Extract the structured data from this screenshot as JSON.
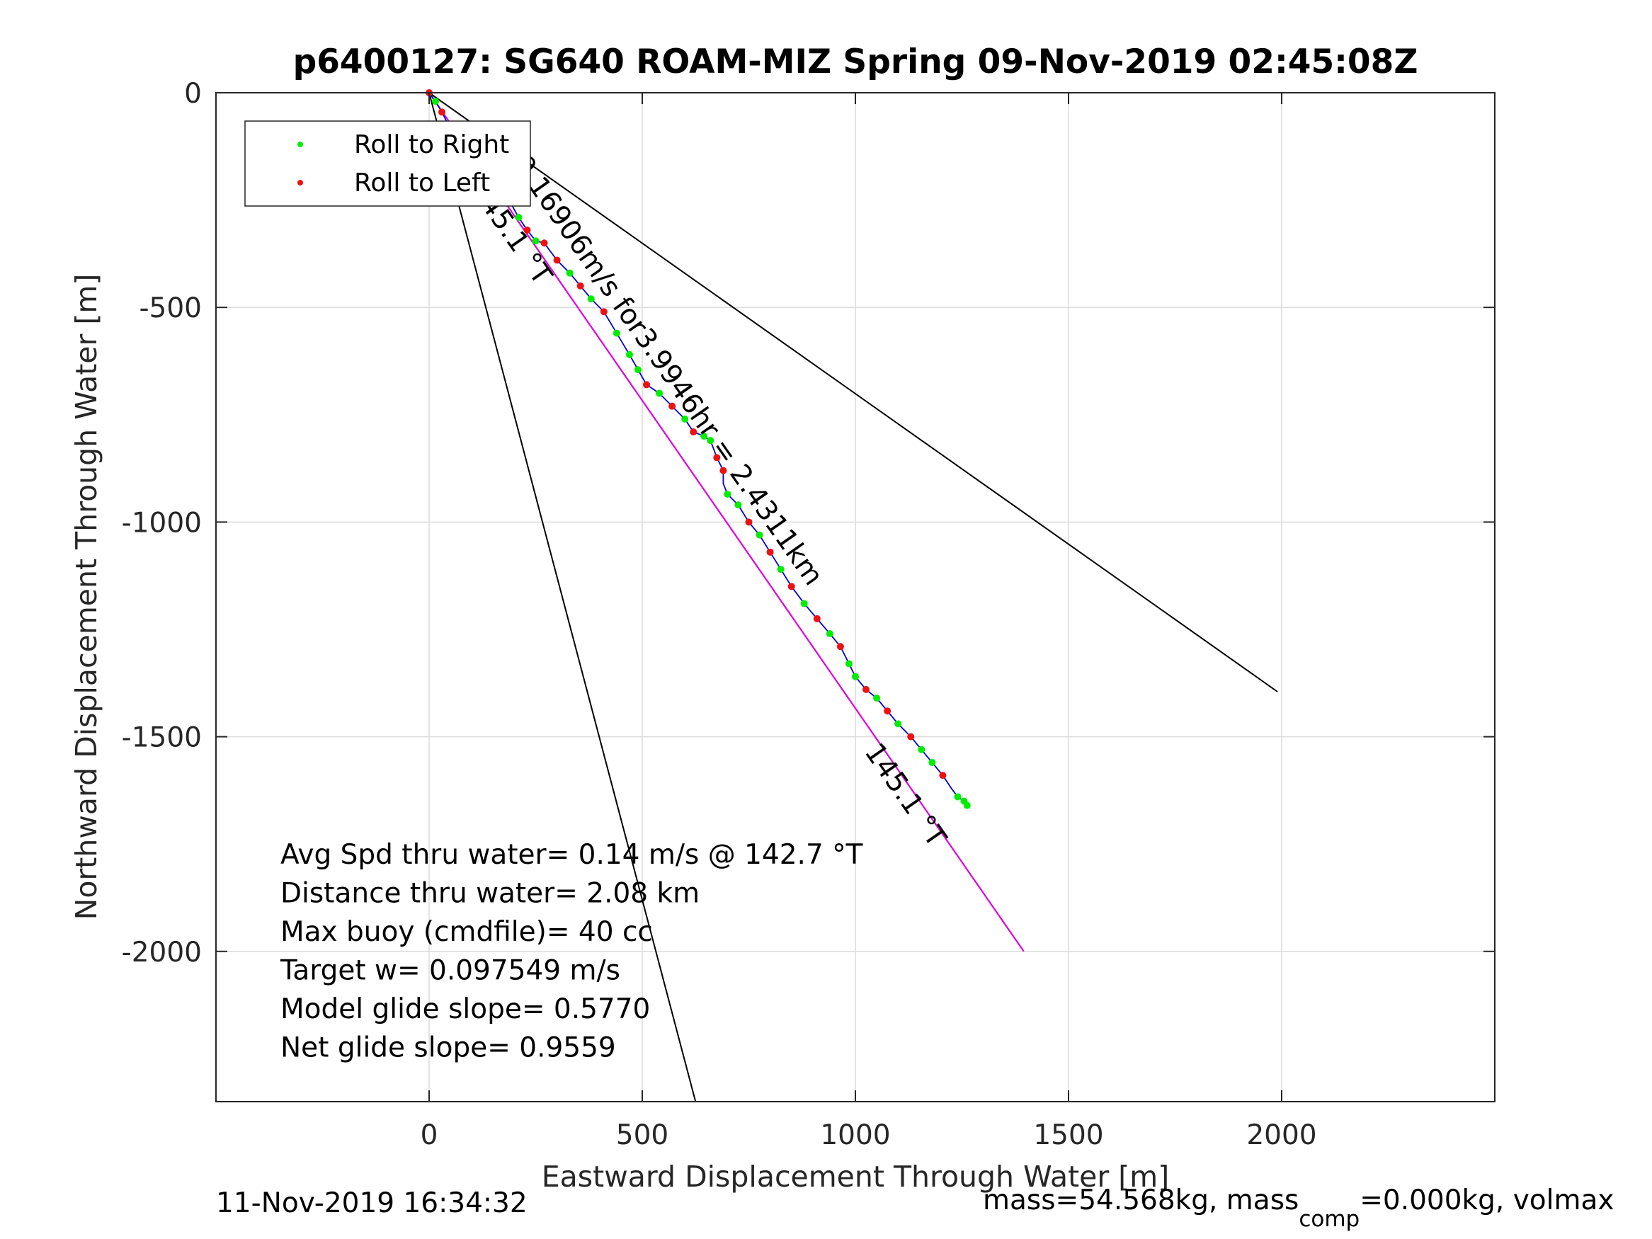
{
  "chart_data": {
    "type": "line",
    "title": "p6400127: SG640 ROAM-MIZ Spring 09-Nov-2019 02:45:08Z",
    "xlabel": "Eastward Displacement Through Water [m]",
    "ylabel": "Northward Displacement Through Water [m]",
    "xlim": [
      -500,
      2500
    ],
    "ylim": [
      -2350,
      0
    ],
    "xticks": [
      0,
      500,
      1000,
      1500,
      2000
    ],
    "yticks": [
      0,
      -500,
      -1000,
      -1500,
      -2000
    ],
    "grid": true,
    "legend": {
      "placement": "top-left",
      "entries": [
        {
          "label": "Roll to Right",
          "color": "#00ee00"
        },
        {
          "label": "Roll to Left",
          "color": "#ee1111"
        }
      ]
    },
    "track": {
      "color": "#0000cc",
      "x": [
        0,
        15,
        30,
        45,
        60,
        80,
        100,
        120,
        140,
        155,
        170,
        190,
        210,
        230,
        250,
        270,
        300,
        330,
        355,
        380,
        410,
        440,
        470,
        490,
        510,
        540,
        570,
        600,
        620,
        645,
        660,
        675,
        690,
        690,
        700,
        725,
        750,
        775,
        800,
        825,
        850,
        880,
        910,
        940,
        965,
        985,
        1000,
        1025,
        1050,
        1075,
        1100,
        1130,
        1155,
        1180,
        1205,
        1225,
        1240,
        1255,
        1262
      ],
      "y": [
        0,
        -20,
        -45,
        -75,
        -100,
        -125,
        -150,
        -180,
        -205,
        -190,
        -230,
        -255,
        -290,
        -320,
        -345,
        -350,
        -390,
        -420,
        -450,
        -480,
        -510,
        -560,
        -610,
        -645,
        -680,
        -700,
        -730,
        -760,
        -790,
        -800,
        -810,
        -850,
        -880,
        -910,
        -935,
        -960,
        -1000,
        -1030,
        -1070,
        -1110,
        -1150,
        -1190,
        -1225,
        -1260,
        -1290,
        -1330,
        -1360,
        -1390,
        -1410,
        -1440,
        -1470,
        -1500,
        -1530,
        -1560,
        -1590,
        -1620,
        -1640,
        -1650,
        -1660
      ]
    },
    "roll_right_points": {
      "x": [
        15,
        60,
        100,
        155,
        190,
        210,
        250,
        330,
        380,
        440,
        470,
        490,
        540,
        600,
        645,
        660,
        700,
        725,
        775,
        825,
        880,
        940,
        985,
        1000,
        1050,
        1100,
        1155,
        1180,
        1240,
        1255,
        1262
      ],
      "y": [
        -20,
        -100,
        -150,
        -190,
        -255,
        -290,
        -345,
        -420,
        -480,
        -560,
        -610,
        -645,
        -700,
        -760,
        -800,
        -810,
        -935,
        -960,
        -1030,
        -1110,
        -1190,
        -1260,
        -1330,
        -1360,
        -1410,
        -1470,
        -1530,
        -1560,
        -1640,
        -1650,
        -1660
      ]
    },
    "roll_left_points": {
      "x": [
        0,
        30,
        45,
        80,
        120,
        140,
        170,
        230,
        270,
        300,
        355,
        410,
        510,
        570,
        620,
        675,
        690,
        750,
        800,
        850,
        910,
        965,
        1025,
        1075,
        1130,
        1205
      ],
      "y": [
        0,
        -45,
        -75,
        -125,
        -180,
        -205,
        -230,
        -320,
        -350,
        -390,
        -450,
        -510,
        -680,
        -730,
        -790,
        -850,
        -880,
        -1000,
        -1070,
        -1150,
        -1225,
        -1290,
        -1390,
        -1440,
        -1500,
        -1590
      ]
    },
    "heading_line": {
      "color": "#dd00dd",
      "x": [
        0,
        1395
      ],
      "y": [
        0,
        -2000
      ]
    },
    "bounds_lines": [
      {
        "color": "#000000",
        "x": [
          0,
          1990
        ],
        "y": [
          0,
          -1395
        ]
      },
      {
        "color": "#000000",
        "x": [
          0,
          625
        ],
        "y": [
          0,
          -2350
        ]
      }
    ],
    "annotations": {
      "rotated_labels": [
        {
          "text": "0.16906m/s for3.9946hr = 2.4311km",
          "x": 195,
          "y": -165,
          "angle": 55
        },
        {
          "text": "145.1 °T",
          "x": 95,
          "y": -225,
          "angle": 55
        },
        {
          "text": "145.1 °T",
          "x": 1020,
          "y": -1535,
          "angle": 55
        }
      ],
      "stats": [
        "Avg Spd thru water=  0.14 m/s @ 142.7 °T",
        "Distance thru water=  2.08 km",
        "Max buoy (cmdfile)= 40 cc",
        "Target w= 0.097549 m/s",
        "Model glide slope= 0.5770",
        "Net glide slope= 0.9559"
      ]
    }
  },
  "footer": {
    "timestamp": "11-Nov-2019 16:34:32",
    "mass_prefix": "mass=54.568kg, mass",
    "mass_sub": "comp",
    "mass_suffix": "=0.000kg, volmax"
  }
}
